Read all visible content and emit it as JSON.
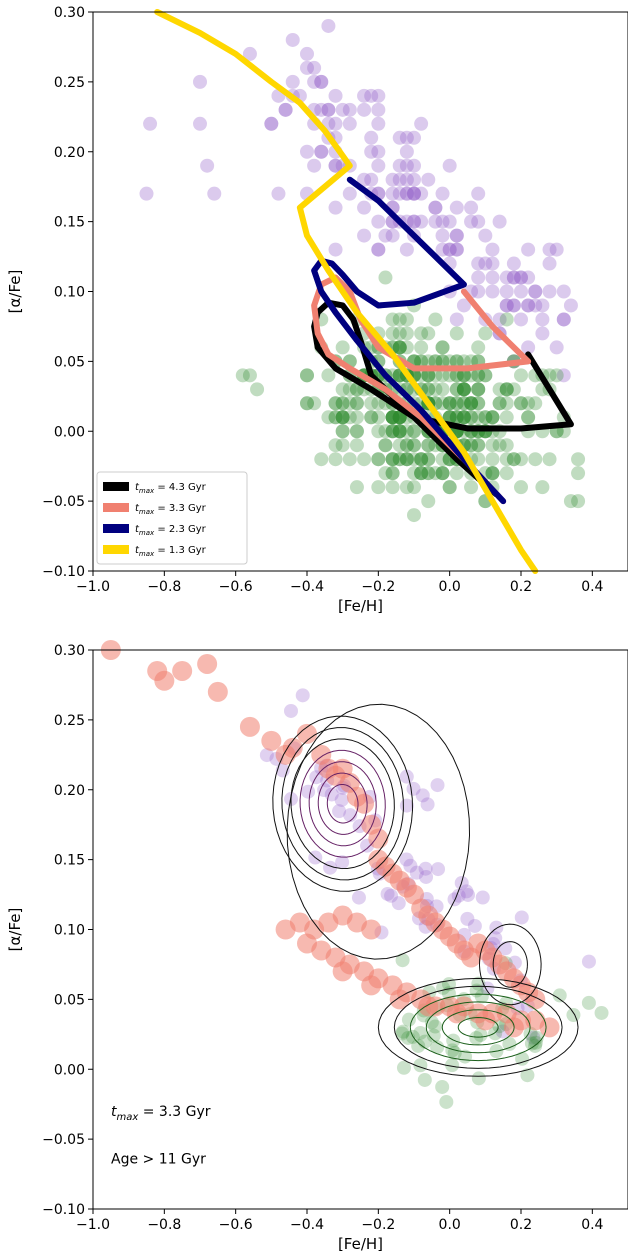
{
  "chart_data": [
    {
      "type": "line",
      "xlabel": "[Fe/H]",
      "ylabel": "[α/Fe]",
      "xlim": [
        -1.0,
        0.5
      ],
      "ylim": [
        -0.1,
        0.3
      ],
      "xticks": [
        "−1.0",
        "−0.8",
        "−0.6",
        "−0.4",
        "−0.2",
        "0.0",
        "0.2",
        "0.4"
      ],
      "xtick_values": [
        -1.0,
        -0.8,
        -0.6,
        -0.4,
        -0.2,
        0.0,
        0.2,
        0.4
      ],
      "yticks": [
        "0.30",
        "0.25",
        "0.20",
        "0.15",
        "0.10",
        "0.05",
        "0.00",
        "−0.05",
        "−0.10"
      ],
      "ytick_values": [
        0.3,
        0.25,
        0.2,
        0.15,
        0.1,
        0.05,
        0.0,
        -0.05,
        -0.1
      ],
      "legend_position": "lower-left",
      "colors": {
        "purple_points": "#9966cc",
        "green_points": "#2e8b2e",
        "black": "#000000",
        "salmon": "#f08070",
        "navy": "#00007f",
        "gold": "#ffd700"
      },
      "series": [
        {
          "name": "t_max = 4.3 Gyr",
          "label_var": "t",
          "label_sub": "max",
          "label_rest": " = 4.3 Gyr",
          "color": "#000000",
          "x": [
            0.13,
            0.02,
            -0.1,
            -0.22,
            -0.32,
            -0.37,
            -0.38,
            -0.37,
            -0.34,
            -0.3,
            -0.27,
            -0.25,
            -0.22,
            -0.1,
            0.05,
            0.2,
            0.34,
            0.28,
            0.22
          ],
          "y": [
            -0.045,
            -0.02,
            0.01,
            0.03,
            0.045,
            0.06,
            0.075,
            0.085,
            0.092,
            0.09,
            0.08,
            0.065,
            0.04,
            0.01,
            0.002,
            0.002,
            0.005,
            0.03,
            0.055
          ]
        },
        {
          "name": "t_max = 3.3 Gyr",
          "label_var": "t",
          "label_sub": "max",
          "label_rest": " = 3.3 Gyr",
          "color": "#f08070",
          "x": [
            0.15,
            0.04,
            -0.08,
            -0.18,
            -0.28,
            -0.34,
            -0.37,
            -0.38,
            -0.36,
            -0.32,
            -0.28,
            -0.25,
            -0.2,
            -0.1,
            0.05,
            0.22,
            0.12,
            0.04
          ],
          "y": [
            -0.05,
            -0.02,
            0.01,
            0.03,
            0.045,
            0.055,
            0.07,
            0.09,
            0.105,
            0.11,
            0.1,
            0.08,
            0.06,
            0.045,
            0.045,
            0.05,
            0.075,
            0.1
          ]
        },
        {
          "name": "t_max = 2.3 Gyr",
          "label_var": "t",
          "label_sub": "max",
          "label_rest": " = 2.3 Gyr",
          "color": "#00007f",
          "x": [
            0.15,
            0.04,
            -0.08,
            -0.18,
            -0.26,
            -0.32,
            -0.36,
            -0.38,
            -0.36,
            -0.33,
            -0.3,
            -0.26,
            -0.2,
            -0.1,
            0.04,
            -0.1,
            -0.2,
            -0.28
          ],
          "y": [
            -0.05,
            -0.02,
            0.015,
            0.04,
            0.065,
            0.085,
            0.1,
            0.115,
            0.122,
            0.12,
            0.112,
            0.1,
            0.09,
            0.092,
            0.105,
            0.14,
            0.165,
            0.18
          ]
        },
        {
          "name": "t_max = 1.3 Gyr",
          "label_var": "t",
          "label_sub": "max",
          "label_rest": " = 1.3 Gyr",
          "color": "#ffd700",
          "x": [
            -0.82,
            -0.7,
            -0.6,
            -0.5,
            -0.42,
            -0.35,
            -0.28,
            -0.42,
            -0.4,
            -0.34,
            -0.26,
            -0.16,
            -0.06,
            0.04,
            0.12,
            0.2,
            0.24
          ],
          "y": [
            0.3,
            0.285,
            0.27,
            0.25,
            0.235,
            0.215,
            0.19,
            0.16,
            0.14,
            0.115,
            0.085,
            0.055,
            0.02,
            -0.015,
            -0.05,
            -0.085,
            -0.1
          ]
        }
      ]
    },
    {
      "type": "scatter",
      "xlabel": "[Fe/H]",
      "ylabel": "[α/Fe]",
      "xlim": [
        -1.0,
        0.5
      ],
      "ylim": [
        -0.1,
        0.3
      ],
      "xticks": [
        "−1.0",
        "−0.8",
        "−0.6",
        "−0.4",
        "−0.2",
        "0.0",
        "0.2",
        "0.4"
      ],
      "xtick_values": [
        -1.0,
        -0.8,
        -0.6,
        -0.4,
        -0.2,
        0.0,
        0.2,
        0.4
      ],
      "yticks": [
        "0.30",
        "0.25",
        "0.20",
        "0.15",
        "0.10",
        "0.05",
        "0.00",
        "−0.05",
        "−0.10"
      ],
      "ytick_values": [
        0.3,
        0.25,
        0.2,
        0.15,
        0.1,
        0.05,
        0.0,
        -0.05,
        -0.1
      ],
      "colors": {
        "model_points": "#f08070",
        "purple_points": "#9966cc",
        "green_points": "#2e8b2e",
        "contours_dark": "#111111",
        "contours_purple": "#662266",
        "contours_green": "#1a5e1a"
      },
      "annotations": [
        {
          "var": "t",
          "sub": "max",
          "rest": " =  3.3 Gyr"
        },
        {
          "text": "Age > 11 Gyr"
        }
      ],
      "model_points_x": [
        -0.95,
        -0.82,
        -0.8,
        -0.75,
        -0.68,
        -0.65,
        -0.56,
        -0.5,
        -0.46,
        -0.44,
        -0.4,
        -0.36,
        -0.34,
        -0.32,
        -0.3,
        -0.28,
        -0.26,
        -0.24,
        -0.22,
        -0.2,
        -0.2,
        -0.18,
        -0.16,
        -0.14,
        -0.12,
        -0.1,
        -0.08,
        -0.06,
        -0.04,
        -0.02,
        0.0,
        0.02,
        0.04,
        0.06,
        0.08,
        0.1,
        0.12,
        0.14,
        0.16,
        0.18,
        0.2,
        0.22,
        0.24,
        -0.46,
        -0.42,
        -0.38,
        -0.34,
        -0.3,
        -0.26,
        -0.22,
        -0.4,
        -0.36,
        -0.32,
        -0.28,
        -0.24,
        -0.2,
        -0.16,
        -0.12,
        -0.08,
        -0.04,
        0.0,
        0.04,
        0.08,
        0.12,
        0.16,
        0.2,
        0.24,
        0.28,
        -0.3,
        -0.22,
        -0.14,
        -0.06,
        0.02,
        0.1,
        0.18
      ],
      "model_points_y": [
        0.3,
        0.285,
        0.278,
        0.285,
        0.29,
        0.27,
        0.245,
        0.235,
        0.225,
        0.23,
        0.24,
        0.225,
        0.215,
        0.21,
        0.215,
        0.205,
        0.195,
        0.19,
        0.175,
        0.165,
        0.15,
        0.145,
        0.14,
        0.135,
        0.13,
        0.125,
        0.115,
        0.11,
        0.105,
        0.1,
        0.095,
        0.09,
        0.085,
        0.08,
        0.09,
        0.085,
        0.08,
        0.075,
        0.07,
        0.065,
        0.06,
        0.055,
        0.05,
        0.1,
        0.105,
        0.1,
        0.105,
        0.11,
        0.105,
        0.1,
        0.09,
        0.085,
        0.08,
        0.075,
        0.07,
        0.065,
        0.06,
        0.055,
        0.05,
        0.045,
        0.045,
        0.045,
        0.04,
        0.04,
        0.04,
        0.035,
        0.035,
        0.03,
        0.07,
        0.06,
        0.05,
        0.045,
        0.04,
        0.035,
        0.03
      ]
    }
  ]
}
